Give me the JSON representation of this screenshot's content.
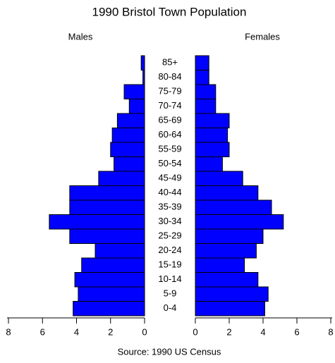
{
  "chart_data": {
    "type": "pyramid",
    "title": "1990 Bristol Town Population",
    "categories": [
      "85+",
      "80-84",
      "75-79",
      "70-74",
      "65-69",
      "60-64",
      "55-59",
      "50-54",
      "45-49",
      "40-44",
      "35-39",
      "30-34",
      "25-29",
      "20-24",
      "15-19",
      "10-14",
      "5-9",
      "0-4"
    ],
    "series": [
      {
        "name": "Males",
        "color": "#0000ff",
        "values": [
          0.2,
          0.1,
          1.2,
          0.9,
          1.6,
          1.9,
          2.0,
          1.8,
          2.7,
          4.4,
          4.4,
          5.6,
          4.4,
          2.9,
          3.7,
          4.1,
          3.9,
          4.2
        ]
      },
      {
        "name": "Females",
        "color": "#0000ff",
        "values": [
          0.8,
          0.8,
          1.2,
          1.2,
          2.0,
          1.9,
          2.0,
          1.6,
          2.8,
          3.7,
          4.5,
          5.2,
          4.0,
          3.6,
          2.9,
          3.7,
          4.3,
          4.1
        ]
      }
    ],
    "xlim": [
      0,
      8
    ],
    "xticks": [
      0,
      2,
      4,
      6,
      8
    ],
    "source": "Source: 1990 US Census"
  }
}
